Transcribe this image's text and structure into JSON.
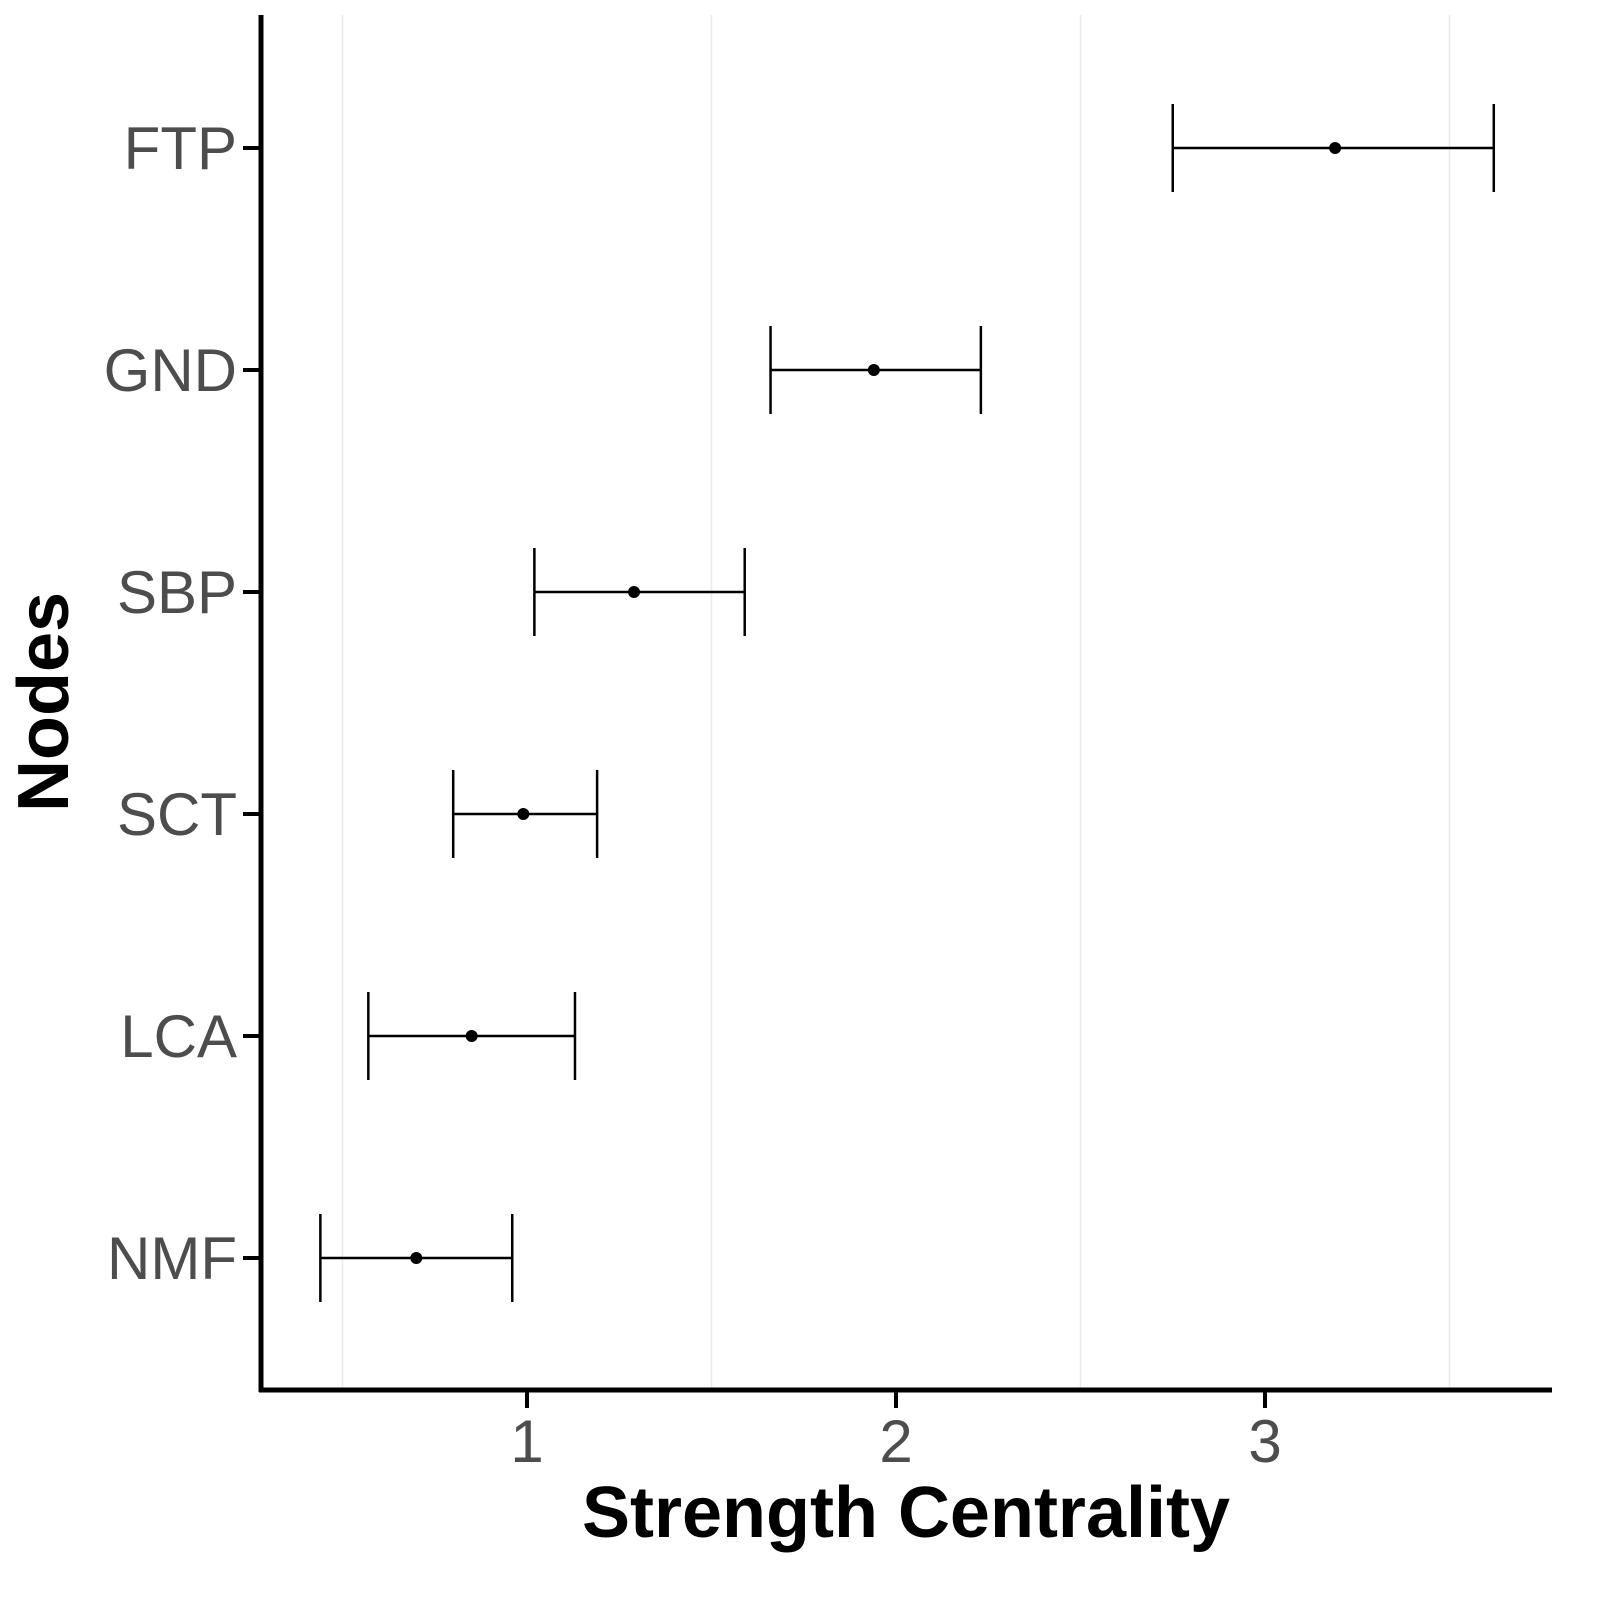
{
  "chart_data": {
    "type": "errorbar",
    "xlabel": "Strength Centrality",
    "ylabel": "Nodes",
    "xlim": [
      0.276,
      3.778
    ],
    "x_ticks": [
      1,
      2,
      3
    ],
    "x_tick_labels": [
      "1",
      "2",
      "3"
    ],
    "grid": "vertical minor lines only",
    "categories": [
      "FTP",
      "GND",
      "SBP",
      "SCT",
      "LCA",
      "NMF"
    ],
    "values": [
      3.19,
      1.94,
      1.29,
      0.99,
      0.85,
      0.7
    ],
    "lower": [
      2.75,
      1.66,
      1.02,
      0.8,
      0.57,
      0.44
    ],
    "upper": [
      3.62,
      2.23,
      1.59,
      1.19,
      1.13,
      0.96
    ],
    "colors": {
      "marks": "#000000",
      "grid": "#ebebeb",
      "tick_text": "#4d4d4d"
    }
  }
}
